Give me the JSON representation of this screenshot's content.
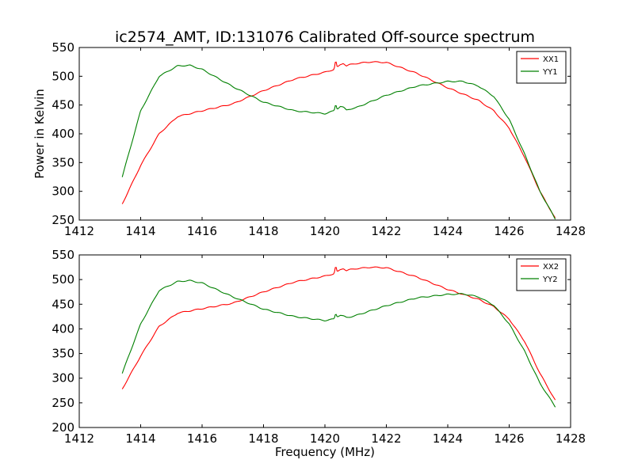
{
  "title": "ic2574_AMT, ID:131076 Calibrated Off-source spectrum",
  "chart_data": [
    {
      "type": "line",
      "title": "ic2574_AMT, ID:131076 Calibrated Off-source spectrum",
      "xlabel": "",
      "ylabel": "Power in Kelvin",
      "xlim": [
        1412,
        1428
      ],
      "ylim": [
        250,
        550
      ],
      "xticks": [
        "1412",
        "1414",
        "1416",
        "1418",
        "1420",
        "1422",
        "1424",
        "1426",
        "1428"
      ],
      "yticks": [
        "250",
        "300",
        "350",
        "400",
        "450",
        "500",
        "550"
      ],
      "grid": false,
      "legend": "top-right",
      "series": [
        {
          "name": "XX1",
          "color": "#ff0000",
          "x": [
            1413.4,
            1414.0,
            1414.6,
            1415.2,
            1416.0,
            1417.0,
            1418.0,
            1419.0,
            1420.0,
            1420.3,
            1420.35,
            1420.4,
            1420.5,
            1420.6,
            1420.7,
            1420.8,
            1421.0,
            1421.5,
            1422.0,
            1423.0,
            1424.0,
            1425.0,
            1425.5,
            1426.0,
            1426.5,
            1427.0,
            1427.5
          ],
          "values": [
            278,
            345,
            400,
            430,
            440,
            452,
            475,
            495,
            507,
            512,
            528,
            515,
            520,
            523,
            518,
            520,
            522,
            525,
            524,
            505,
            480,
            458,
            440,
            410,
            360,
            300,
            253
          ]
        },
        {
          "name": "YY1",
          "color": "#008000",
          "x": [
            1413.4,
            1414.0,
            1414.6,
            1415.2,
            1415.6,
            1416.0,
            1417.0,
            1418.0,
            1419.0,
            1420.0,
            1420.3,
            1420.35,
            1420.4,
            1420.5,
            1420.6,
            1420.7,
            1420.8,
            1421.0,
            1422.0,
            1423.0,
            1424.0,
            1424.5,
            1425.0,
            1425.5,
            1426.0,
            1426.5,
            1427.0,
            1427.5
          ],
          "values": [
            325,
            440,
            500,
            518,
            519,
            512,
            482,
            455,
            440,
            435,
            440,
            452,
            443,
            448,
            446,
            441,
            443,
            445,
            467,
            483,
            491,
            491,
            483,
            465,
            425,
            365,
            300,
            252
          ]
        }
      ]
    },
    {
      "type": "line",
      "title": "",
      "xlabel": "Frequency (MHz)",
      "ylabel": "",
      "xlim": [
        1412,
        1428
      ],
      "ylim": [
        200,
        550
      ],
      "xticks": [
        "1412",
        "1414",
        "1416",
        "1418",
        "1420",
        "1422",
        "1424",
        "1426",
        "1428"
      ],
      "yticks": [
        "200",
        "250",
        "300",
        "350",
        "400",
        "450",
        "500",
        "550"
      ],
      "grid": false,
      "legend": "top-right",
      "series": [
        {
          "name": "XX2",
          "color": "#ff0000",
          "x": [
            1413.4,
            1414.0,
            1414.6,
            1415.2,
            1416.0,
            1417.0,
            1418.0,
            1419.0,
            1420.0,
            1420.3,
            1420.35,
            1420.4,
            1420.5,
            1420.6,
            1420.7,
            1420.8,
            1421.0,
            1421.5,
            1422.0,
            1423.0,
            1424.0,
            1425.0,
            1425.5,
            1426.0,
            1426.5,
            1427.0,
            1427.5
          ],
          "values": [
            278,
            345,
            405,
            432,
            441,
            452,
            475,
            495,
            507,
            512,
            528,
            515,
            520,
            523,
            518,
            520,
            522,
            525,
            524,
            505,
            480,
            460,
            445,
            420,
            375,
            310,
            255
          ]
        },
        {
          "name": "YY2",
          "color": "#008000",
          "x": [
            1413.4,
            1414.0,
            1414.6,
            1415.2,
            1415.6,
            1416.0,
            1417.0,
            1418.0,
            1419.0,
            1420.0,
            1420.3,
            1420.35,
            1420.4,
            1420.5,
            1420.6,
            1420.7,
            1420.8,
            1421.0,
            1422.0,
            1423.0,
            1424.0,
            1424.5,
            1425.0,
            1425.5,
            1426.0,
            1426.5,
            1427.0,
            1427.5
          ],
          "values": [
            310,
            410,
            478,
            496,
            498,
            493,
            465,
            440,
            425,
            417,
            420,
            432,
            425,
            428,
            426,
            423,
            424,
            427,
            447,
            463,
            470,
            471,
            465,
            448,
            410,
            355,
            290,
            242
          ]
        }
      ]
    }
  ]
}
